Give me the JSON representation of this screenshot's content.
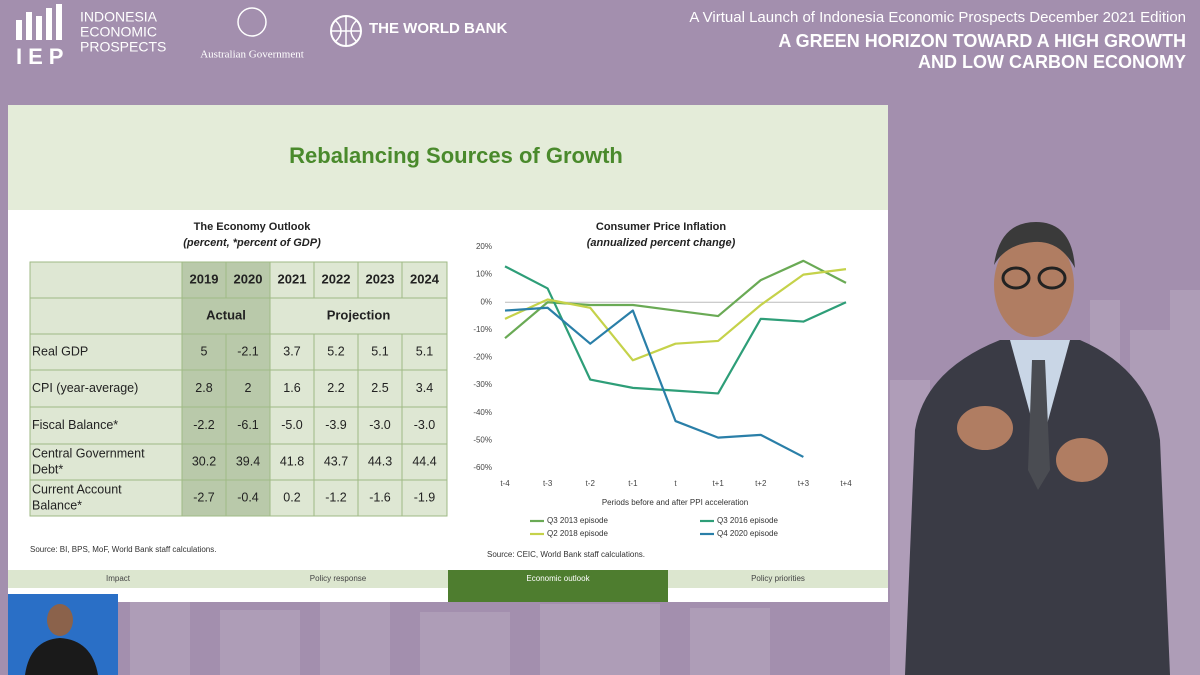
{
  "header": {
    "logo_short": "IEP",
    "logo_name": [
      "INDONESIA",
      "ECONOMIC",
      "PROSPECTS"
    ],
    "partner_1": "Australian Government",
    "partner_2": "THE WORLD BANK",
    "event": "A Virtual Launch of Indonesia Economic Prospects December 2021 Edition",
    "headline": [
      "A GREEN HORIZON TOWARD A HIGH GROWTH",
      "AND LOW CARBON ECONOMY"
    ]
  },
  "slide": {
    "title": "Rebalancing Sources of Growth",
    "table": {
      "title": "The Economy Outlook",
      "subtitle": "(percent, *percent of GDP)",
      "columns": [
        "2019",
        "2020",
        "2021",
        "2022",
        "2023",
        "2024"
      ],
      "groups": [
        "Actual",
        "Projection"
      ],
      "rows": [
        {
          "label": [
            "Real GDP"
          ],
          "values": [
            "5",
            "-2.1",
            "3.7",
            "5.2",
            "5.1",
            "5.1"
          ]
        },
        {
          "label": [
            "CPI (year-average)"
          ],
          "values": [
            "2.8",
            "2",
            "1.6",
            "2.2",
            "2.5",
            "3.4"
          ]
        },
        {
          "label": [
            "Fiscal Balance*"
          ],
          "values": [
            "-2.2",
            "-6.1",
            "-5.0",
            "-3.9",
            "-3.0",
            "-3.0"
          ]
        },
        {
          "label": [
            "Central Government",
            "Debt*"
          ],
          "values": [
            "30.2",
            "39.4",
            "41.8",
            "43.7",
            "44.3",
            "44.4"
          ]
        },
        {
          "label": [
            "Current Account",
            "Balance*"
          ],
          "values": [
            "-2.7",
            "-0.4",
            "0.2",
            "-1.2",
            "-1.6",
            "-1.9"
          ]
        }
      ],
      "source": "Source: BI, BPS, MoF, World Bank staff calculations."
    },
    "tabs": [
      "Impact",
      "Policy response",
      "Economic outlook",
      "Policy priorities"
    ],
    "active_tab": 2
  },
  "chart_data": {
    "type": "line",
    "title": "Consumer Price Inflation",
    "subtitle": "(annualized percent change)",
    "xlabel": "Periods before and after PPI acceleration",
    "categories": [
      "t-4",
      "t-3",
      "t-2",
      "t-1",
      "t",
      "t+1",
      "t+2",
      "t+3",
      "t+4"
    ],
    "series": [
      {
        "name": "Q3 2013 episode",
        "color": "#6aaa55",
        "values": [
          -13,
          0,
          -1,
          -1,
          -3,
          -5,
          8,
          15,
          7
        ]
      },
      {
        "name": "Q3 2016 episode",
        "color": "#2e9e78",
        "values": [
          13,
          5,
          -28,
          -31,
          -32,
          -33,
          -6,
          -7,
          0
        ]
      },
      {
        "name": "Q2 2018 episode",
        "color": "#c5d24a",
        "values": [
          -6,
          1,
          -2,
          -21,
          -15,
          -14,
          -1,
          10,
          12
        ]
      },
      {
        "name": "Q4 2020 episode",
        "color": "#2a7fa8",
        "values": [
          -3,
          -2,
          -15,
          -3,
          -43,
          -49,
          -48,
          -56,
          null
        ]
      }
    ],
    "ylim": [
      -60,
      20
    ],
    "yticks": [
      {
        "value": 20,
        "label": "20%"
      },
      {
        "value": 10,
        "label": "10%"
      },
      {
        "value": 0,
        "label": "0%"
      },
      {
        "value": -10,
        "label": "-10%"
      },
      {
        "value": -20,
        "label": "-20%"
      },
      {
        "value": -30,
        "label": "-30%"
      },
      {
        "value": -40,
        "label": "-40%"
      },
      {
        "value": -50,
        "label": "-50%"
      },
      {
        "value": -60,
        "label": "-60%"
      }
    ],
    "legend": "bottom",
    "source": "Source: CEIC, World Bank staff calculations."
  }
}
